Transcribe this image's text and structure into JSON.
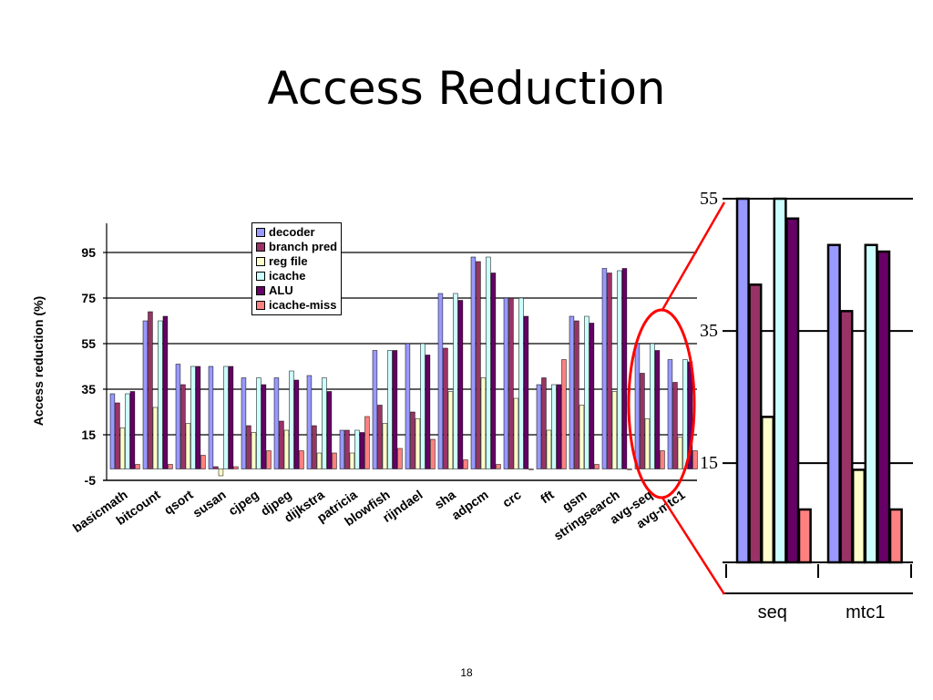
{
  "slide": {
    "title": "Access Reduction",
    "page_number": "18"
  },
  "colors": {
    "decoder": "#9999ff",
    "branch_pred": "#993366",
    "reg_file": "#ffffcc",
    "icache": "#ccffff",
    "alu": "#660066",
    "icache_miss": "#ff8080",
    "highlight": "#ff0000"
  },
  "chart_data": [
    {
      "type": "bar",
      "ylabel": "Access reduction (%)",
      "ylim": [
        -5,
        95
      ],
      "yticks": [
        "95",
        "75",
        "55",
        "35",
        "15",
        "-5"
      ],
      "grid": true,
      "legend_position": "top-center",
      "categories": [
        "basicmath",
        "bitcount",
        "qsort",
        "susan",
        "cjpeg",
        "djpeg",
        "dijkstra",
        "patricia",
        "blowfish",
        "rijndael",
        "sha",
        "adpcm",
        "crc",
        "fft",
        "gsm",
        "stringsearch",
        "avg-seq",
        "avg-mtc1"
      ],
      "series": [
        {
          "name": "decoder",
          "values": [
            33,
            65,
            46,
            45,
            40,
            40,
            41,
            17,
            52,
            55,
            77,
            93,
            75,
            37,
            67,
            88,
            55,
            48
          ]
        },
        {
          "name": "branch pred",
          "values": [
            29,
            69,
            37,
            1,
            19,
            21,
            19,
            17,
            28,
            25,
            53,
            91,
            75,
            40,
            65,
            86,
            42,
            38
          ]
        },
        {
          "name": "reg file",
          "values": [
            18,
            27,
            20,
            -3,
            16,
            17,
            7,
            7,
            20,
            22,
            34,
            40,
            31,
            17,
            28,
            34,
            22,
            14
          ]
        },
        {
          "name": "icache",
          "values": [
            33,
            65,
            45,
            45,
            40,
            43,
            40,
            17,
            52,
            55,
            77,
            93,
            75,
            37,
            67,
            87,
            55,
            48
          ]
        },
        {
          "name": "ALU",
          "values": [
            34,
            67,
            45,
            45,
            37,
            39,
            34,
            16,
            52,
            50,
            74,
            86,
            67,
            37,
            64,
            88,
            52,
            47
          ]
        },
        {
          "name": "icache-miss",
          "values": [
            2,
            2,
            6,
            1,
            8,
            8,
            7,
            23,
            9,
            13,
            4,
            2,
            0,
            48,
            2,
            0,
            8,
            8
          ]
        }
      ]
    },
    {
      "type": "bar",
      "ylim": [
        0,
        55
      ],
      "yticks": [
        "55",
        "35",
        "15"
      ],
      "grid": true,
      "categories": [
        "seq",
        "mtc1"
      ],
      "series": [
        {
          "name": "decoder",
          "values": [
            55,
            48
          ]
        },
        {
          "name": "branch pred",
          "values": [
            42,
            38
          ]
        },
        {
          "name": "reg file",
          "values": [
            22,
            14
          ]
        },
        {
          "name": "icache",
          "values": [
            55,
            48
          ]
        },
        {
          "name": "ALU",
          "values": [
            52,
            47
          ]
        },
        {
          "name": "icache-miss",
          "values": [
            8,
            8
          ]
        }
      ]
    }
  ]
}
